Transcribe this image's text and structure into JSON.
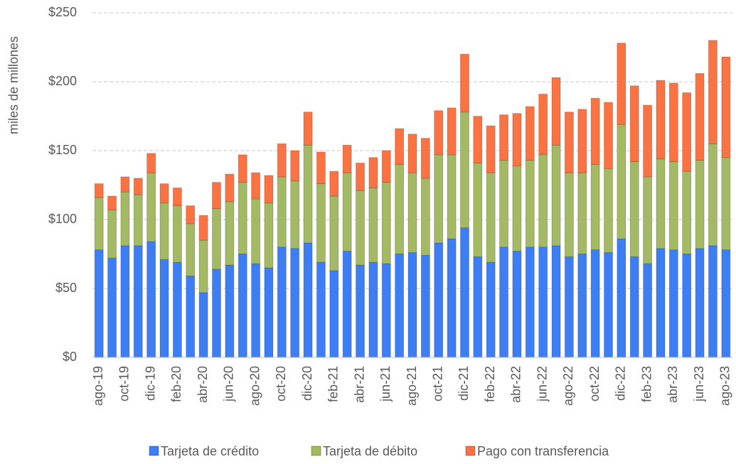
{
  "chart_data": {
    "type": "stacked_bar",
    "y_label": "miles de millones",
    "categories": [
      "ago-19",
      null,
      "oct-19",
      null,
      "dic-19",
      null,
      "feb-20",
      null,
      "abr-20",
      null,
      "jun-20",
      null,
      "ago-20",
      null,
      "oct-20",
      null,
      "dic-20",
      null,
      "feb-21",
      null,
      "abr-21",
      null,
      "jun-21",
      null,
      "ago-21",
      null,
      "oct-21",
      null,
      "dic-21",
      null,
      "feb-22",
      null,
      "abr-22",
      null,
      "jun-22",
      null,
      "ago-22",
      null,
      "oct-22",
      null,
      "dic-22",
      null,
      "feb-23",
      null,
      "abr-23",
      null,
      "jun-23",
      null,
      "ago-23"
    ],
    "series": [
      {
        "name": "Tarjeta de crédito",
        "color": "#3d7ef5",
        "values": [
          78,
          72,
          81,
          81,
          84,
          71,
          69,
          59,
          47,
          64,
          67,
          75,
          68,
          65,
          80,
          79,
          83,
          69,
          63,
          77,
          67,
          69,
          68,
          75,
          76,
          74,
          83,
          86,
          94,
          73,
          69,
          80,
          77,
          80,
          80,
          81,
          73,
          75,
          78,
          76,
          86,
          73,
          68,
          79,
          78,
          75,
          79,
          81,
          78
        ]
      },
      {
        "name": "Tarjeta de débito",
        "color": "#a4b964",
        "values": [
          38,
          35,
          39,
          37,
          50,
          41,
          41,
          38,
          38,
          44,
          46,
          52,
          47,
          47,
          51,
          49,
          71,
          57,
          54,
          57,
          54,
          54,
          59,
          65,
          58,
          56,
          64,
          61,
          84,
          68,
          65,
          63,
          62,
          63,
          67,
          73,
          61,
          59,
          62,
          61,
          83,
          69,
          63,
          65,
          64,
          60,
          64,
          74,
          67
        ]
      },
      {
        "name": "Pago con transferencia",
        "color": "#fb7343",
        "values": [
          10,
          10,
          11,
          12,
          14,
          14,
          13,
          13,
          18,
          19,
          20,
          20,
          19,
          20,
          24,
          22,
          24,
          23,
          18,
          20,
          20,
          22,
          23,
          26,
          28,
          29,
          32,
          34,
          42,
          34,
          34,
          33,
          38,
          39,
          44,
          49,
          44,
          46,
          48,
          48,
          59,
          55,
          52,
          57,
          57,
          57,
          63,
          75,
          73
        ]
      }
    ],
    "ylim": [
      0,
      250
    ],
    "yticks": [
      {
        "value": 0,
        "label": "$0"
      },
      {
        "value": 50,
        "label": "$50"
      },
      {
        "value": 100,
        "label": "$100"
      },
      {
        "value": 150,
        "label": "$150"
      },
      {
        "value": 200,
        "label": "$200"
      },
      {
        "value": 250,
        "label": "$250"
      }
    ],
    "grid": true,
    "legend": "bottom"
  }
}
